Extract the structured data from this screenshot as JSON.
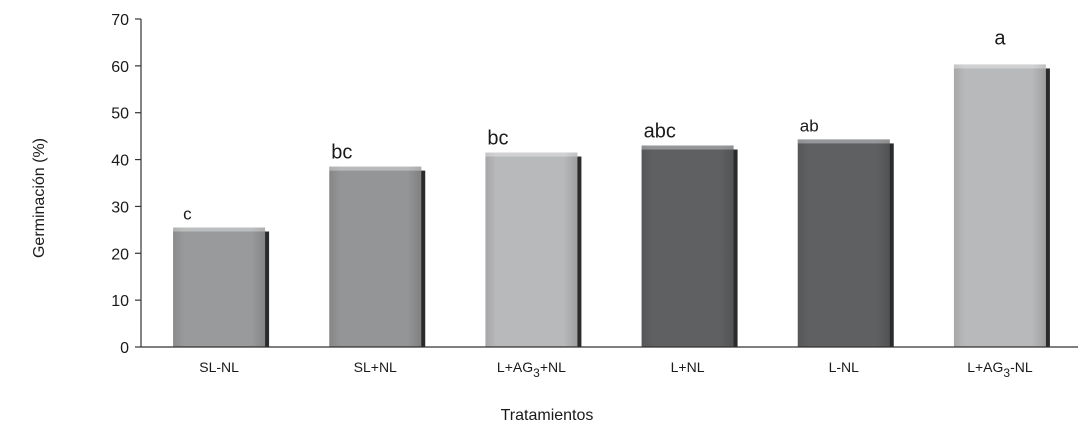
{
  "chart_data": {
    "type": "bar",
    "categories": [
      {
        "base": "SL-NL",
        "sub": "",
        "tail": ""
      },
      {
        "base": "SL+NL",
        "sub": "",
        "tail": ""
      },
      {
        "base": "L+AG",
        "sub": "3",
        "tail": "+NL"
      },
      {
        "base": "L+NL",
        "sub": "",
        "tail": ""
      },
      {
        "base": "L-NL",
        "sub": "",
        "tail": ""
      },
      {
        "base": "L+AG",
        "sub": "3",
        "tail": "-NL"
      }
    ],
    "values": [
      25.5,
      38.5,
      41.5,
      43.0,
      44.3,
      60.3
    ],
    "significance_letters": [
      "c",
      "bc",
      "bc",
      "abc",
      "ab",
      "a"
    ],
    "bar_colors": [
      "#999a9c",
      "#949597",
      "#b8b9bb",
      "#5f6062",
      "#5f6062",
      "#b8b9bb"
    ],
    "shadow_color": "#2b2b2b",
    "title": "",
    "xlabel": "Tratamientos",
    "ylabel": "Germinación (%)",
    "ylim": [
      0,
      70
    ],
    "yticks": [
      0,
      10,
      20,
      30,
      40,
      50,
      60,
      70
    ],
    "grid": false,
    "legend": "none"
  }
}
